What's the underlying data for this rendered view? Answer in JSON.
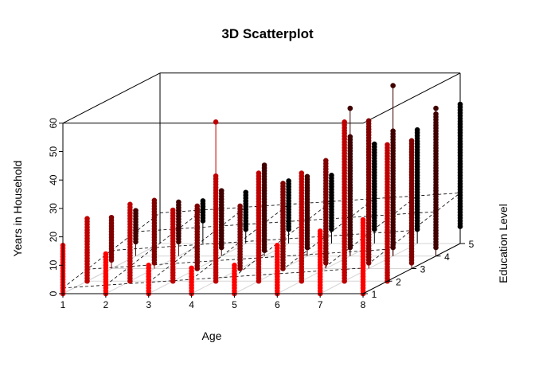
{
  "chart_data": {
    "type": "scatter",
    "title": "3D Scatterplot",
    "xlabel": "Age",
    "ylabel": "Education Level",
    "zlabel": "Years in Household",
    "x_ticks": [
      "1",
      "2",
      "3",
      "4",
      "5",
      "6",
      "7",
      "8"
    ],
    "y_ticks": [
      "1",
      "2",
      "3",
      "4",
      "5"
    ],
    "z_ticks": [
      "0",
      "10",
      "20",
      "30",
      "40",
      "50",
      "60"
    ],
    "xlim": [
      1,
      8
    ],
    "ylim": [
      1,
      5
    ],
    "zlim": [
      0,
      60
    ],
    "type_h_drop_lines": true,
    "regression_plane": true,
    "color_by_depth": {
      "near": "#ff0000",
      "far": "#000000"
    },
    "columns": [
      {
        "x": 1,
        "y": 1,
        "zmin": 0,
        "zmax": 17
      },
      {
        "x": 1,
        "y": 2,
        "zmin": 0,
        "zmax": 22
      },
      {
        "x": 1,
        "y": 3,
        "zmin": 3,
        "zmax": 18
      },
      {
        "x": 1,
        "y": 4,
        "zmin": 5,
        "zmax": 16
      },
      {
        "x": 2,
        "y": 1,
        "zmin": 0,
        "zmax": 14
      },
      {
        "x": 2,
        "y": 2,
        "zmin": 0,
        "zmax": 27
      },
      {
        "x": 2,
        "y": 3,
        "zmin": 2,
        "zmax": 24
      },
      {
        "x": 2,
        "y": 4,
        "zmin": 5,
        "zmax": 19
      },
      {
        "x": 2,
        "y": 5,
        "zmin": 8,
        "zmax": 15
      },
      {
        "x": 3,
        "y": 1,
        "zmin": 0,
        "zmax": 10
      },
      {
        "x": 3,
        "y": 2,
        "zmin": 0,
        "zmax": 25
      },
      {
        "x": 3,
        "y": 3,
        "zmin": 0,
        "zmax": 22
      },
      {
        "x": 3,
        "y": 4,
        "zmin": 3,
        "zmax": 23
      },
      {
        "x": 3,
        "y": 5,
        "zmin": 5,
        "zmax": 18
      },
      {
        "x": 4,
        "y": 1,
        "zmin": 0,
        "zmax": 9
      },
      {
        "x": 4,
        "y": 2,
        "zmin": 0,
        "zmax": 37
      },
      {
        "x": 4,
        "y": 3,
        "zmin": 0,
        "zmax": 22
      },
      {
        "x": 4,
        "y": 4,
        "zmin": 2,
        "zmax": 32
      },
      {
        "x": 4,
        "y": 5,
        "zmin": 5,
        "zmax": 22
      },
      {
        "x": 5,
        "y": 1,
        "zmin": 0,
        "zmax": 10
      },
      {
        "x": 5,
        "y": 2,
        "zmin": 0,
        "zmax": 38
      },
      {
        "x": 5,
        "y": 3,
        "zmin": 0,
        "zmax": 30
      },
      {
        "x": 5,
        "y": 4,
        "zmin": 3,
        "zmax": 28
      },
      {
        "x": 5,
        "y": 5,
        "zmin": 5,
        "zmax": 24
      },
      {
        "x": 6,
        "y": 1,
        "zmin": 0,
        "zmax": 17
      },
      {
        "x": 6,
        "y": 2,
        "zmin": 0,
        "zmax": 38
      },
      {
        "x": 6,
        "y": 3,
        "zmin": 2,
        "zmax": 38
      },
      {
        "x": 6,
        "y": 4,
        "zmin": 3,
        "zmax": 42
      },
      {
        "x": 6,
        "y": 5,
        "zmin": 5,
        "zmax": 35
      },
      {
        "x": 7,
        "y": 1,
        "zmin": 0,
        "zmax": 22
      },
      {
        "x": 7,
        "y": 2,
        "zmin": 0,
        "zmax": 56
      },
      {
        "x": 7,
        "y": 3,
        "zmin": 2,
        "zmax": 52
      },
      {
        "x": 7,
        "y": 4,
        "zmin": 3,
        "zmax": 44
      },
      {
        "x": 7,
        "y": 5,
        "zmin": 5,
        "zmax": 40
      },
      {
        "x": 8,
        "y": 1,
        "zmin": 0,
        "zmax": 26
      },
      {
        "x": 8,
        "y": 2,
        "zmin": 0,
        "zmax": 48
      },
      {
        "x": 8,
        "y": 3,
        "zmin": 2,
        "zmax": 45
      },
      {
        "x": 8,
        "y": 4,
        "zmin": 3,
        "zmax": 50
      },
      {
        "x": 8,
        "y": 5,
        "zmin": 6,
        "zmax": 49
      }
    ],
    "outliers": [
      {
        "x": 4,
        "y": 2,
        "z": 56
      },
      {
        "x": 6,
        "y": 4,
        "z": 52
      },
      {
        "x": 7,
        "y": 4,
        "z": 60
      },
      {
        "x": 8,
        "y": 4,
        "z": 52
      }
    ]
  }
}
